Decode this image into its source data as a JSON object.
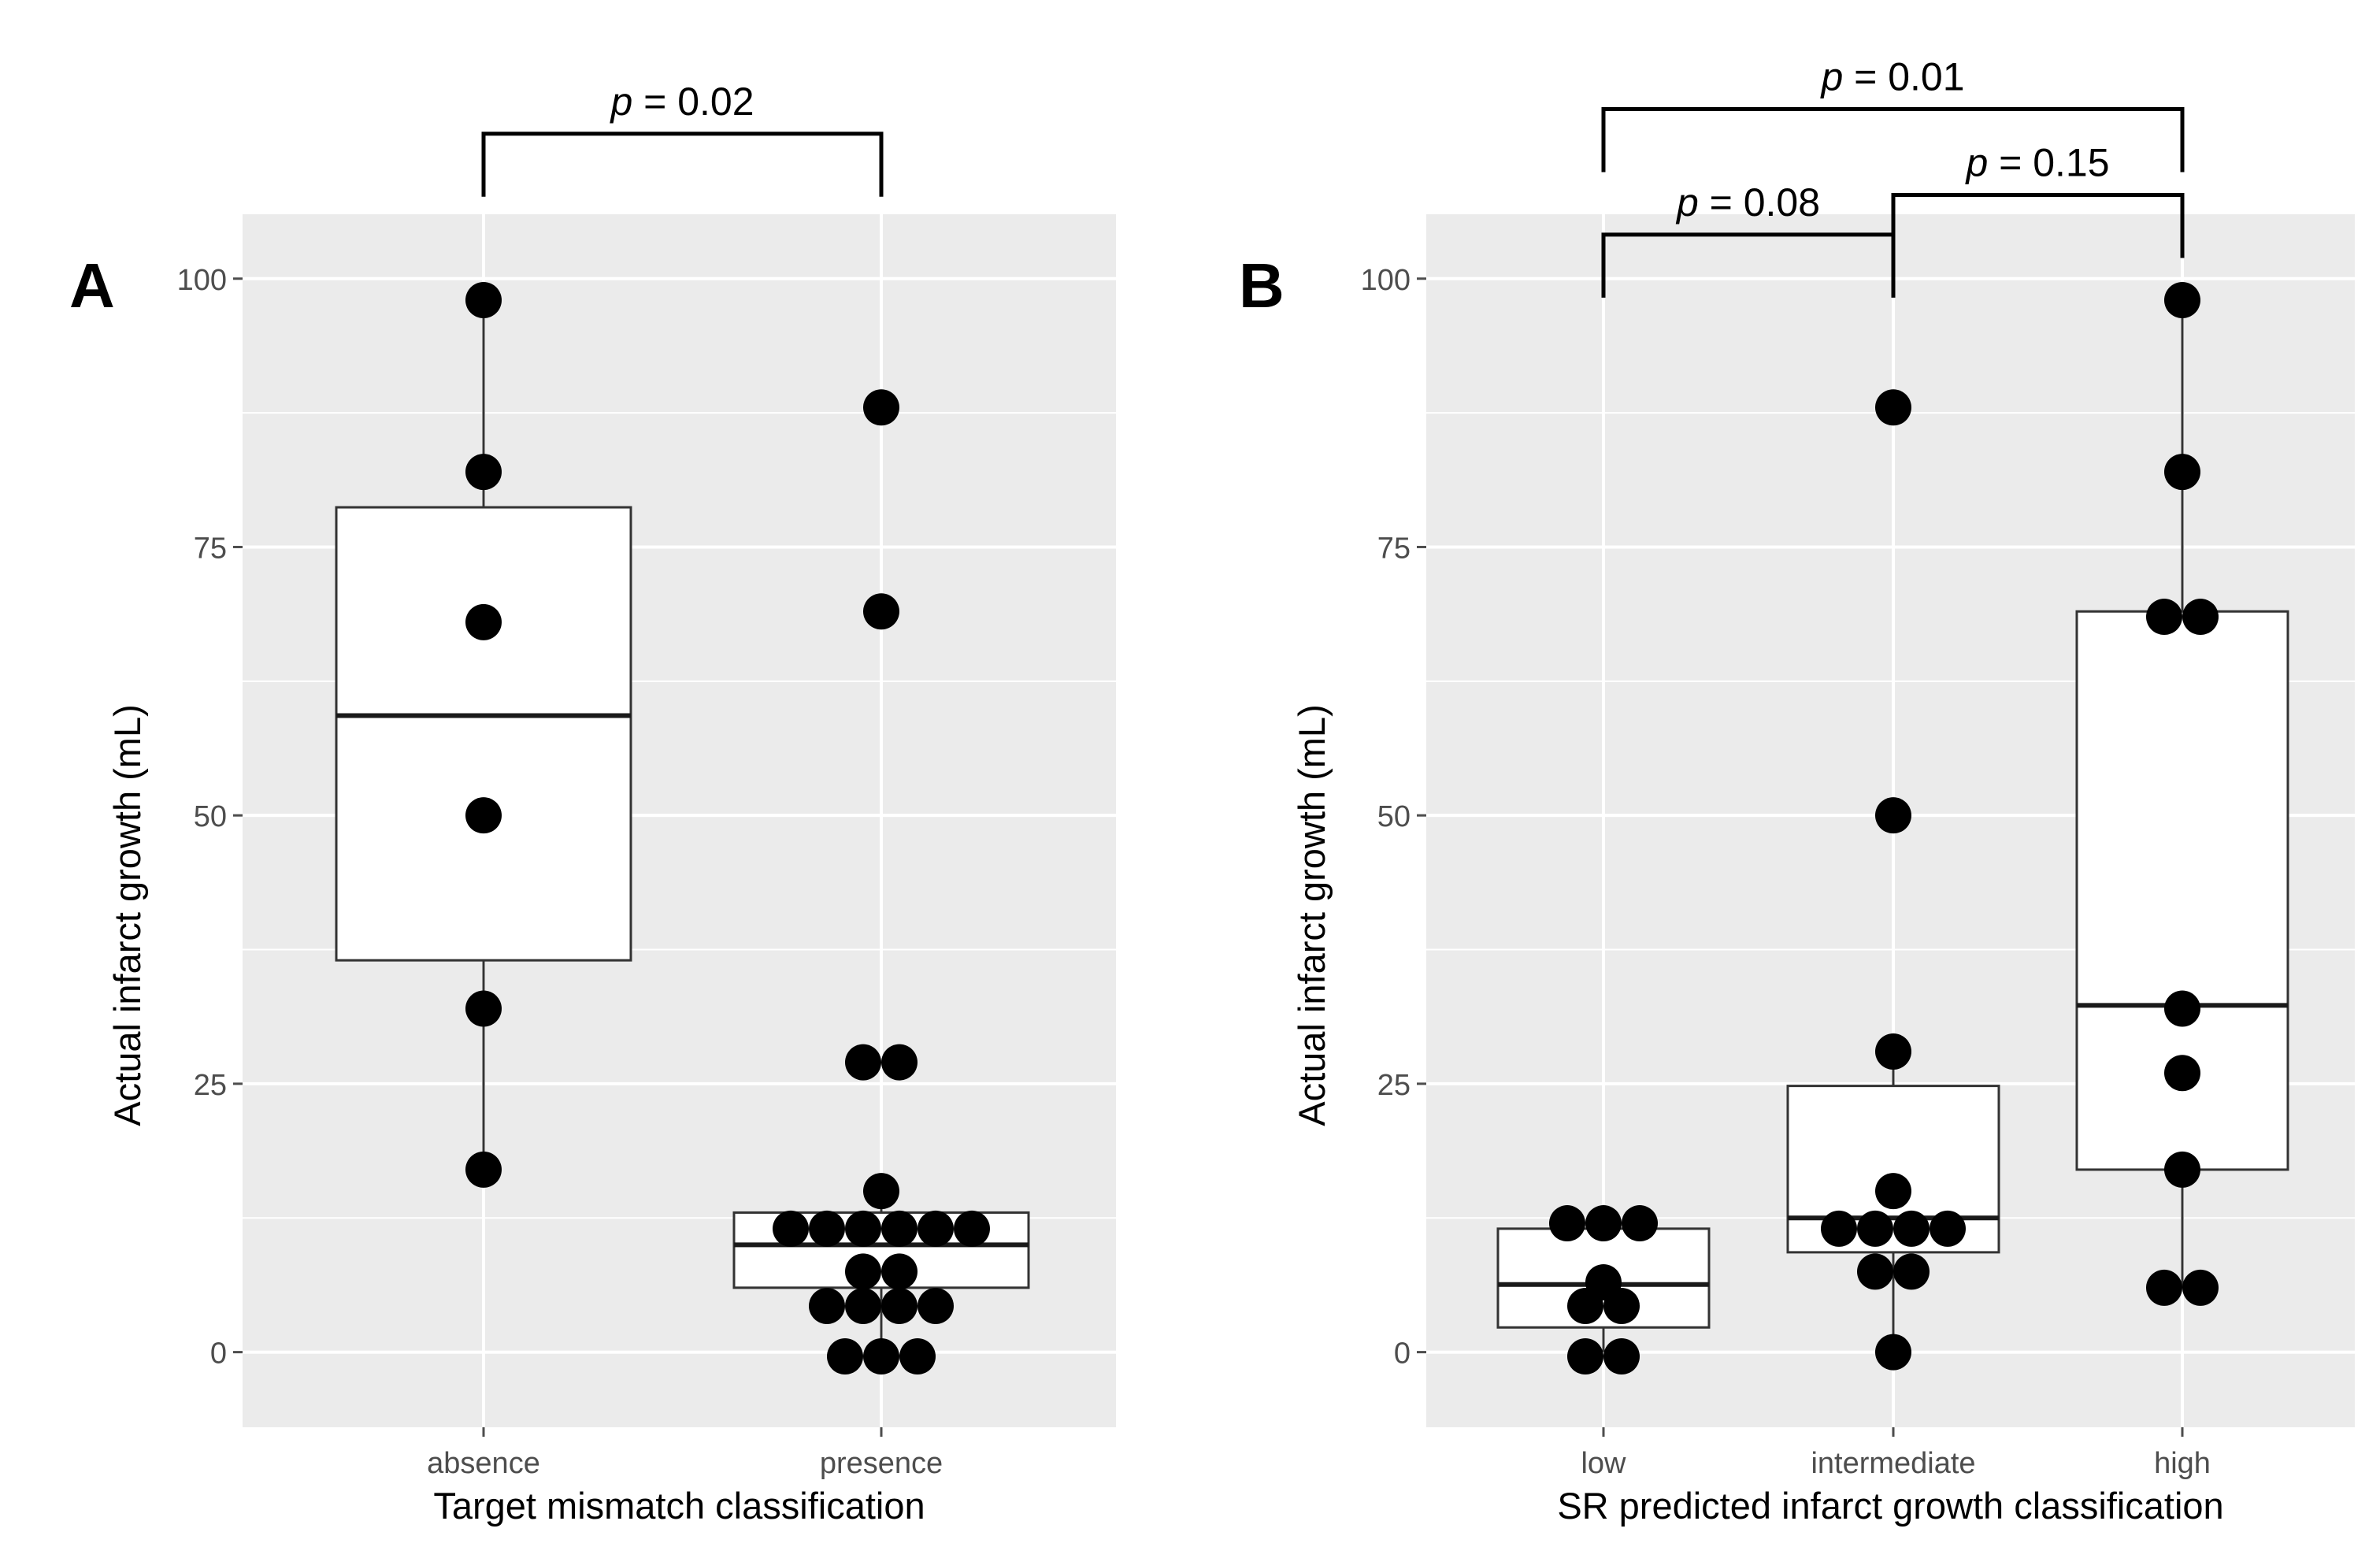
{
  "chart_data": [
    {
      "type": "boxplot",
      "panel_label": "A",
      "xlabel": "Target mismatch classification",
      "ylabel": "Actual infarct growth (mL)",
      "ylim": [
        -7,
        106
      ],
      "yticks": [
        0,
        25,
        50,
        75,
        100
      ],
      "grid": true,
      "categories": [
        "absence",
        "presence"
      ],
      "boxes": [
        {
          "q1": 36.5,
          "median": 59.3,
          "q3": 78.7,
          "whisker_low": 17,
          "whisker_high": 98
        },
        {
          "q1": 6,
          "median": 10,
          "q3": 13,
          "whisker_low": 0,
          "whisker_high": 15
        }
      ],
      "points": [
        [
          {
            "y": 98,
            "dx": 0
          },
          {
            "y": 82,
            "dx": 0
          },
          {
            "y": 68,
            "dx": 0
          },
          {
            "y": 50,
            "dx": 0
          },
          {
            "y": 32,
            "dx": 0
          },
          {
            "y": 17,
            "dx": 0
          }
        ],
        [
          {
            "y": 88,
            "dx": 0
          },
          {
            "y": 69,
            "dx": 0
          },
          {
            "y": 27,
            "dx": -0.5
          },
          {
            "y": 27,
            "dx": 0.5
          },
          {
            "y": 15,
            "dx": 0
          },
          {
            "y": 11.5,
            "dx": -2.5
          },
          {
            "y": 11.5,
            "dx": -1.5
          },
          {
            "y": 11.5,
            "dx": -0.5
          },
          {
            "y": 11.5,
            "dx": 0.5
          },
          {
            "y": 11.5,
            "dx": 1.5
          },
          {
            "y": 11.5,
            "dx": 2.5
          },
          {
            "y": 7.5,
            "dx": -0.5
          },
          {
            "y": 7.5,
            "dx": 0.5
          },
          {
            "y": 4.3,
            "dx": -1.5
          },
          {
            "y": 4.3,
            "dx": -0.5
          },
          {
            "y": 4.3,
            "dx": 0.5
          },
          {
            "y": 4.3,
            "dx": 1.5
          },
          {
            "y": -0.4,
            "dx": -1
          },
          {
            "y": -0.4,
            "dx": 0
          },
          {
            "y": -0.4,
            "dx": 1
          }
        ]
      ],
      "comparisons": [
        {
          "from": 0,
          "to": 1,
          "y": 113.5,
          "prefix": "p",
          "label": " = 0.02"
        }
      ]
    },
    {
      "type": "boxplot",
      "panel_label": "B",
      "xlabel": "SR predicted infarct growth classification",
      "ylabel": "Actual infarct growth (mL)",
      "ylim": [
        -7,
        106
      ],
      "yticks": [
        0,
        25,
        50,
        75,
        100
      ],
      "grid": true,
      "categories": [
        "low",
        "intermediate",
        "high"
      ],
      "boxes": [
        {
          "q1": 2.3,
          "median": 6.3,
          "q3": 11.5,
          "whisker_low": 0,
          "whisker_high": 12
        },
        {
          "q1": 9.3,
          "median": 12.5,
          "q3": 24.8,
          "whisker_low": 0,
          "whisker_high": 28
        },
        {
          "q1": 17,
          "median": 32.3,
          "q3": 69,
          "whisker_low": 6,
          "whisker_high": 98
        }
      ],
      "points": [
        [
          {
            "y": 12,
            "dx": -1
          },
          {
            "y": 12,
            "dx": 0
          },
          {
            "y": 12,
            "dx": 1
          },
          {
            "y": 6.5,
            "dx": 0
          },
          {
            "y": 4.3,
            "dx": -0.5
          },
          {
            "y": 4.3,
            "dx": 0.5
          },
          {
            "y": -0.4,
            "dx": -0.5
          },
          {
            "y": -0.4,
            "dx": 0.5
          }
        ],
        [
          {
            "y": 88,
            "dx": 0
          },
          {
            "y": 50,
            "dx": 0
          },
          {
            "y": 28,
            "dx": 0
          },
          {
            "y": 15,
            "dx": 0
          },
          {
            "y": 11.5,
            "dx": -1.5
          },
          {
            "y": 11.5,
            "dx": -0.5
          },
          {
            "y": 11.5,
            "dx": 0.5
          },
          {
            "y": 11.5,
            "dx": 1.5
          },
          {
            "y": 7.5,
            "dx": -0.5
          },
          {
            "y": 7.5,
            "dx": 0.5
          },
          {
            "y": 0,
            "dx": 0
          }
        ],
        [
          {
            "y": 98,
            "dx": 0
          },
          {
            "y": 82,
            "dx": 0
          },
          {
            "y": 68.5,
            "dx": -0.5
          },
          {
            "y": 68.5,
            "dx": 0.5
          },
          {
            "y": 32,
            "dx": 0
          },
          {
            "y": 26,
            "dx": 0
          },
          {
            "y": 17,
            "dx": 0
          },
          {
            "y": 6,
            "dx": -0.5
          },
          {
            "y": 6,
            "dx": 0.5
          }
        ]
      ],
      "comparisons": [
        {
          "from": 0,
          "to": 2,
          "y": 115.8,
          "prefix": "p",
          "label": " = 0.01"
        },
        {
          "from": 0,
          "to": 1,
          "y": 104.1,
          "prefix": "p",
          "label": " = 0.08"
        },
        {
          "from": 1,
          "to": 2,
          "y": 107.8,
          "prefix": "p",
          "label": " = 0.15"
        }
      ]
    }
  ]
}
